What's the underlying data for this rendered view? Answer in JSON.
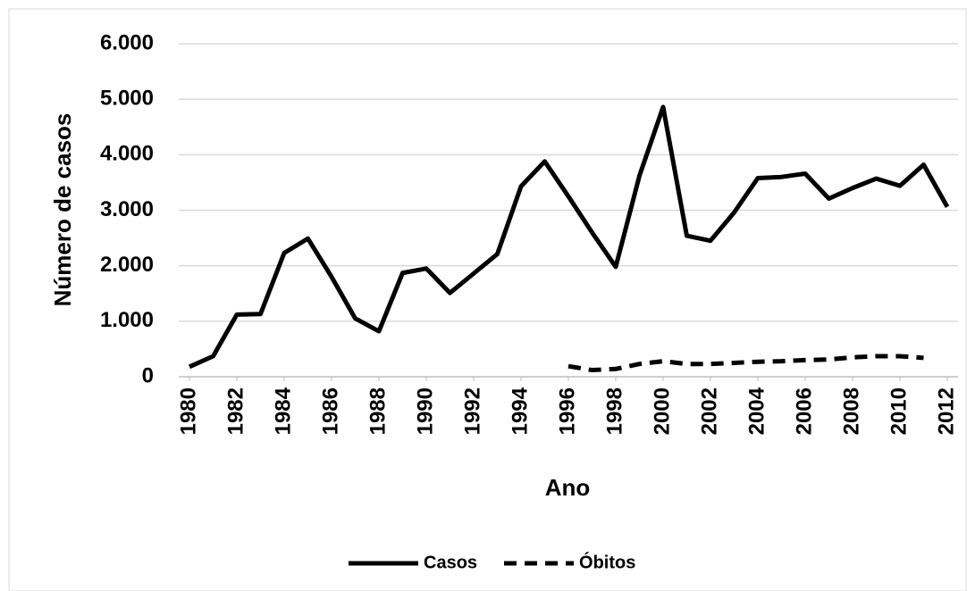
{
  "chart_data": {
    "type": "line",
    "x_label": "Ano",
    "y_label": "Número de casos",
    "x": [
      1980,
      1981,
      1982,
      1983,
      1984,
      1985,
      1986,
      1987,
      1988,
      1989,
      1990,
      1991,
      1992,
      1993,
      1994,
      1995,
      1996,
      1997,
      1998,
      1999,
      2000,
      2001,
      2002,
      2003,
      2004,
      2005,
      2006,
      2007,
      2008,
      2009,
      2010,
      2011,
      2012
    ],
    "series": [
      {
        "name": "Casos",
        "color": "#000000",
        "dash": "solid",
        "values": [
          180,
          370,
          1120,
          1130,
          2230,
          2490,
          1800,
          1050,
          820,
          1870,
          1950,
          1510,
          1860,
          2210,
          3430,
          3880,
          3250,
          2600,
          1980,
          3620,
          4860,
          2540,
          2450,
          2960,
          3580,
          3600,
          3660,
          3210,
          3400,
          3570,
          3440,
          3820,
          3060
        ]
      },
      {
        "name": "Óbitos",
        "color": "#000000",
        "dash": "dashed",
        "values": [
          null,
          null,
          null,
          null,
          null,
          null,
          null,
          null,
          null,
          null,
          null,
          null,
          null,
          null,
          null,
          null,
          190,
          120,
          140,
          230,
          280,
          230,
          230,
          250,
          270,
          280,
          300,
          310,
          350,
          370,
          370,
          340,
          null
        ]
      }
    ],
    "xlim": [
      1980,
      2012
    ],
    "xticks": [
      1980,
      1982,
      1984,
      1986,
      1988,
      1990,
      1992,
      1994,
      1996,
      1998,
      2000,
      2002,
      2004,
      2006,
      2008,
      2010,
      2012
    ],
    "ylim": [
      0,
      6000
    ],
    "yticks": [
      0,
      {
        "value": 1000,
        "label": "1.000"
      },
      {
        "value": 2000,
        "label": "2.000"
      },
      {
        "value": 3000,
        "label": "3.000"
      },
      {
        "value": 4000,
        "label": "4.000"
      },
      {
        "value": 5000,
        "label": "5.000"
      },
      {
        "value": 6000,
        "label": "6.000"
      }
    ],
    "grid": true,
    "legend": "bottom"
  }
}
